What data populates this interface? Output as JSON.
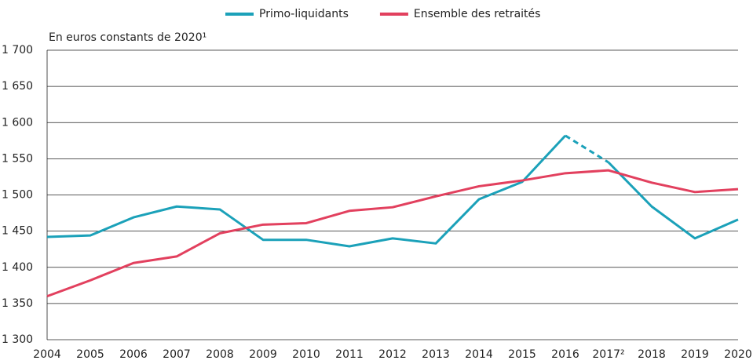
{
  "chart_data": {
    "type": "line",
    "subtitle": "En euros constants de 2020¹",
    "categories": [
      "2004",
      "2005",
      "2006",
      "2007",
      "2008",
      "2009",
      "2010",
      "2011",
      "2012",
      "2013",
      "2014",
      "2015",
      "2016",
      "2017²",
      "2018",
      "2019",
      "2020"
    ],
    "series": [
      {
        "name": "Primo-liquidants",
        "color": "#1ba1b9",
        "dashed_segment": [
          12,
          13
        ],
        "values": [
          1442,
          1444,
          1469,
          1484,
          1480,
          1438,
          1438,
          1429,
          1440,
          1433,
          1494,
          1518,
          1582,
          1545,
          1484,
          1440,
          1466
        ]
      },
      {
        "name": "Ensemble des retraités",
        "color": "#e2405e",
        "values": [
          1360,
          1382,
          1406,
          1415,
          1447,
          1459,
          1461,
          1478,
          1483,
          1498,
          1512,
          1520,
          1530,
          1534,
          1517,
          1504,
          1508
        ]
      }
    ],
    "ylim": [
      1300,
      1700
    ],
    "yticks": [
      {
        "value": 1300,
        "label": "1 300"
      },
      {
        "value": 1350,
        "label": "1 350"
      },
      {
        "value": 1400,
        "label": "1 400"
      },
      {
        "value": 1450,
        "label": "1 450"
      },
      {
        "value": 1500,
        "label": "1 500"
      },
      {
        "value": 1550,
        "label": "1 550"
      },
      {
        "value": 1600,
        "label": "1 600"
      },
      {
        "value": 1650,
        "label": "1 650"
      },
      {
        "value": 1700,
        "label": "1 700"
      }
    ],
    "grid": true,
    "legend": "top"
  }
}
